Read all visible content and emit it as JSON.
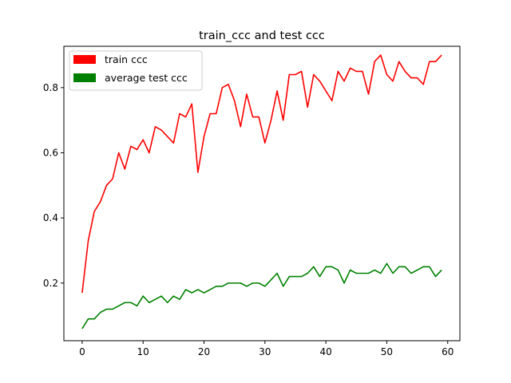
{
  "chart_data": {
    "type": "line",
    "title": "train_ccc and test ccc",
    "xlabel": "",
    "ylabel": "",
    "xlim": [
      -3,
      62
    ],
    "ylim": [
      0.023,
      0.927
    ],
    "x_ticks": [
      0,
      10,
      20,
      30,
      40,
      50,
      60
    ],
    "y_ticks": [
      0.2,
      0.4,
      0.6,
      0.8
    ],
    "grid": false,
    "legend_position": "upper-left",
    "x": [
      0,
      1,
      2,
      3,
      4,
      5,
      6,
      7,
      8,
      9,
      10,
      11,
      12,
      13,
      14,
      15,
      16,
      17,
      18,
      19,
      20,
      21,
      22,
      23,
      24,
      25,
      26,
      27,
      28,
      29,
      30,
      31,
      32,
      33,
      34,
      35,
      36,
      37,
      38,
      39,
      40,
      41,
      42,
      43,
      44,
      45,
      46,
      47,
      48,
      49,
      50,
      51,
      52,
      53,
      54,
      55,
      56,
      57,
      58,
      59
    ],
    "series": [
      {
        "name": "train ccc",
        "color": "#ff0000",
        "values": [
          0.17,
          0.33,
          0.42,
          0.45,
          0.5,
          0.52,
          0.6,
          0.55,
          0.62,
          0.61,
          0.64,
          0.6,
          0.68,
          0.67,
          0.65,
          0.63,
          0.72,
          0.71,
          0.75,
          0.54,
          0.65,
          0.72,
          0.72,
          0.8,
          0.81,
          0.76,
          0.68,
          0.78,
          0.71,
          0.71,
          0.63,
          0.7,
          0.79,
          0.7,
          0.84,
          0.84,
          0.85,
          0.74,
          0.84,
          0.82,
          0.79,
          0.76,
          0.85,
          0.82,
          0.86,
          0.85,
          0.85,
          0.78,
          0.88,
          0.9,
          0.84,
          0.82,
          0.88,
          0.85,
          0.83,
          0.83,
          0.81,
          0.88,
          0.88,
          0.9
        ]
      },
      {
        "name": "average test ccc",
        "color": "#008000",
        "values": [
          0.06,
          0.09,
          0.09,
          0.11,
          0.12,
          0.12,
          0.13,
          0.14,
          0.14,
          0.13,
          0.16,
          0.14,
          0.15,
          0.16,
          0.14,
          0.16,
          0.15,
          0.18,
          0.17,
          0.18,
          0.17,
          0.18,
          0.19,
          0.19,
          0.2,
          0.2,
          0.2,
          0.19,
          0.2,
          0.2,
          0.19,
          0.21,
          0.23,
          0.19,
          0.22,
          0.22,
          0.22,
          0.23,
          0.25,
          0.22,
          0.25,
          0.25,
          0.24,
          0.2,
          0.24,
          0.23,
          0.23,
          0.23,
          0.24,
          0.23,
          0.26,
          0.23,
          0.25,
          0.25,
          0.23,
          0.24,
          0.25,
          0.25,
          0.22,
          0.24
        ]
      }
    ]
  }
}
